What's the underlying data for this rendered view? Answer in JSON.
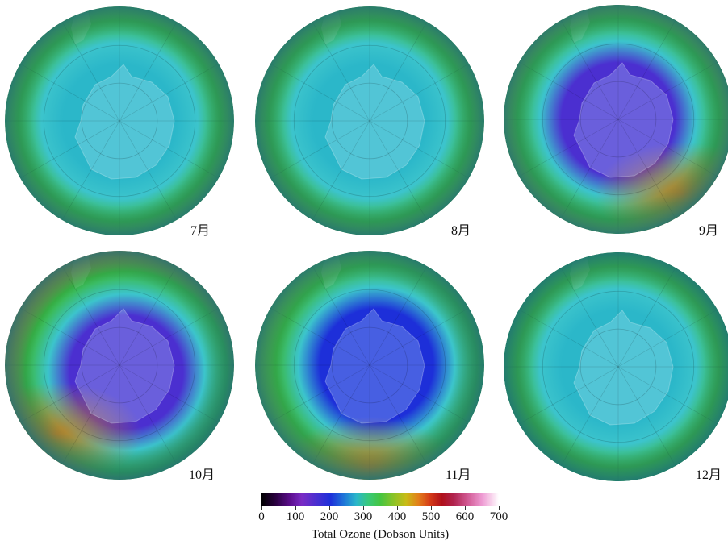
{
  "maps": [
    {
      "month": "7月",
      "hole_ozone_du": 240,
      "ring_ozone_du": 320,
      "hole_shift": [
        0,
        0
      ],
      "high_side": "none"
    },
    {
      "month": "8月",
      "hole_ozone_du": 230,
      "ring_ozone_du": 310,
      "hole_shift": [
        0,
        0
      ],
      "high_side": "none"
    },
    {
      "month": "9月",
      "hole_ozone_du": 150,
      "ring_ozone_du": 380,
      "hole_shift": [
        0,
        0
      ],
      "high_side": "lower-right"
    },
    {
      "month": "10月",
      "hole_ozone_du": 130,
      "ring_ozone_du": 420,
      "hole_shift": [
        0.1,
        0.1
      ],
      "high_side": "lower-left"
    },
    {
      "month": "11月",
      "hole_ozone_du": 190,
      "ring_ozone_du": 340,
      "hole_shift": [
        0.1,
        0
      ],
      "high_side": "lower"
    },
    {
      "month": "12月",
      "hole_ozone_du": 250,
      "ring_ozone_du": 300,
      "hole_shift": [
        0,
        0
      ],
      "high_side": "none"
    }
  ],
  "colors": {
    "ocean_green": "#3ab83a",
    "edge_teal": "#1d6f78",
    "hole_purple": "#6a2fc8",
    "hole_blue": "#1e3cd9",
    "ring_cyan": "#3cc4cc",
    "high_orange": "#c97a1a",
    "land_tint": "rgba(200,240,255,0.25)"
  },
  "colorbar": {
    "ticks": [
      "0",
      "100",
      "200",
      "300",
      "400",
      "500",
      "600",
      "700"
    ],
    "title": "Total Ozone (Dobson Units)",
    "range": [
      0,
      700
    ]
  }
}
